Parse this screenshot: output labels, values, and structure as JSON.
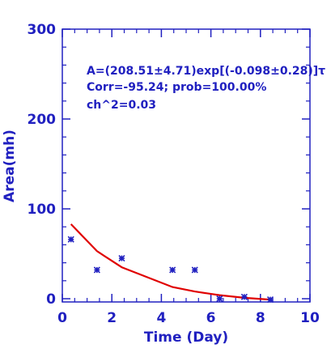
{
  "chart_data": {
    "type": "scatter",
    "title": "",
    "xlabel": "Time (Day)",
    "ylabel": "Area(mh)",
    "xlim": [
      0,
      10
    ],
    "ylim": [
      0,
      300
    ],
    "x_ticks": [
      "0",
      "2",
      "4",
      "6",
      "8",
      "10"
    ],
    "y_ticks": [
      "0",
      "100",
      "200",
      "300"
    ],
    "grid": false,
    "colors": {
      "axes": "#2020c0",
      "points": "#2020c0",
      "fit": "#e00000"
    },
    "annotations": [
      "A=(208.51±4.71)exp[(-0.098±0.28)]τ",
      "Corr=-95.24;  prob=100.00%",
      "ch^2=0.03"
    ],
    "series": [
      {
        "type": "scatter",
        "x": [
          0.35,
          1.4,
          2.4,
          4.45,
          5.35,
          6.35,
          7.35,
          8.4
        ],
        "y": [
          66,
          32,
          45,
          32,
          32,
          0,
          2,
          -1
        ]
      },
      {
        "type": "line",
        "x": [
          0.35,
          1.4,
          2.4,
          4.45,
          5.35,
          6.35,
          7.35,
          8.4
        ],
        "y": [
          83,
          53,
          35,
          13,
          8,
          4,
          1,
          -1
        ]
      }
    ]
  }
}
